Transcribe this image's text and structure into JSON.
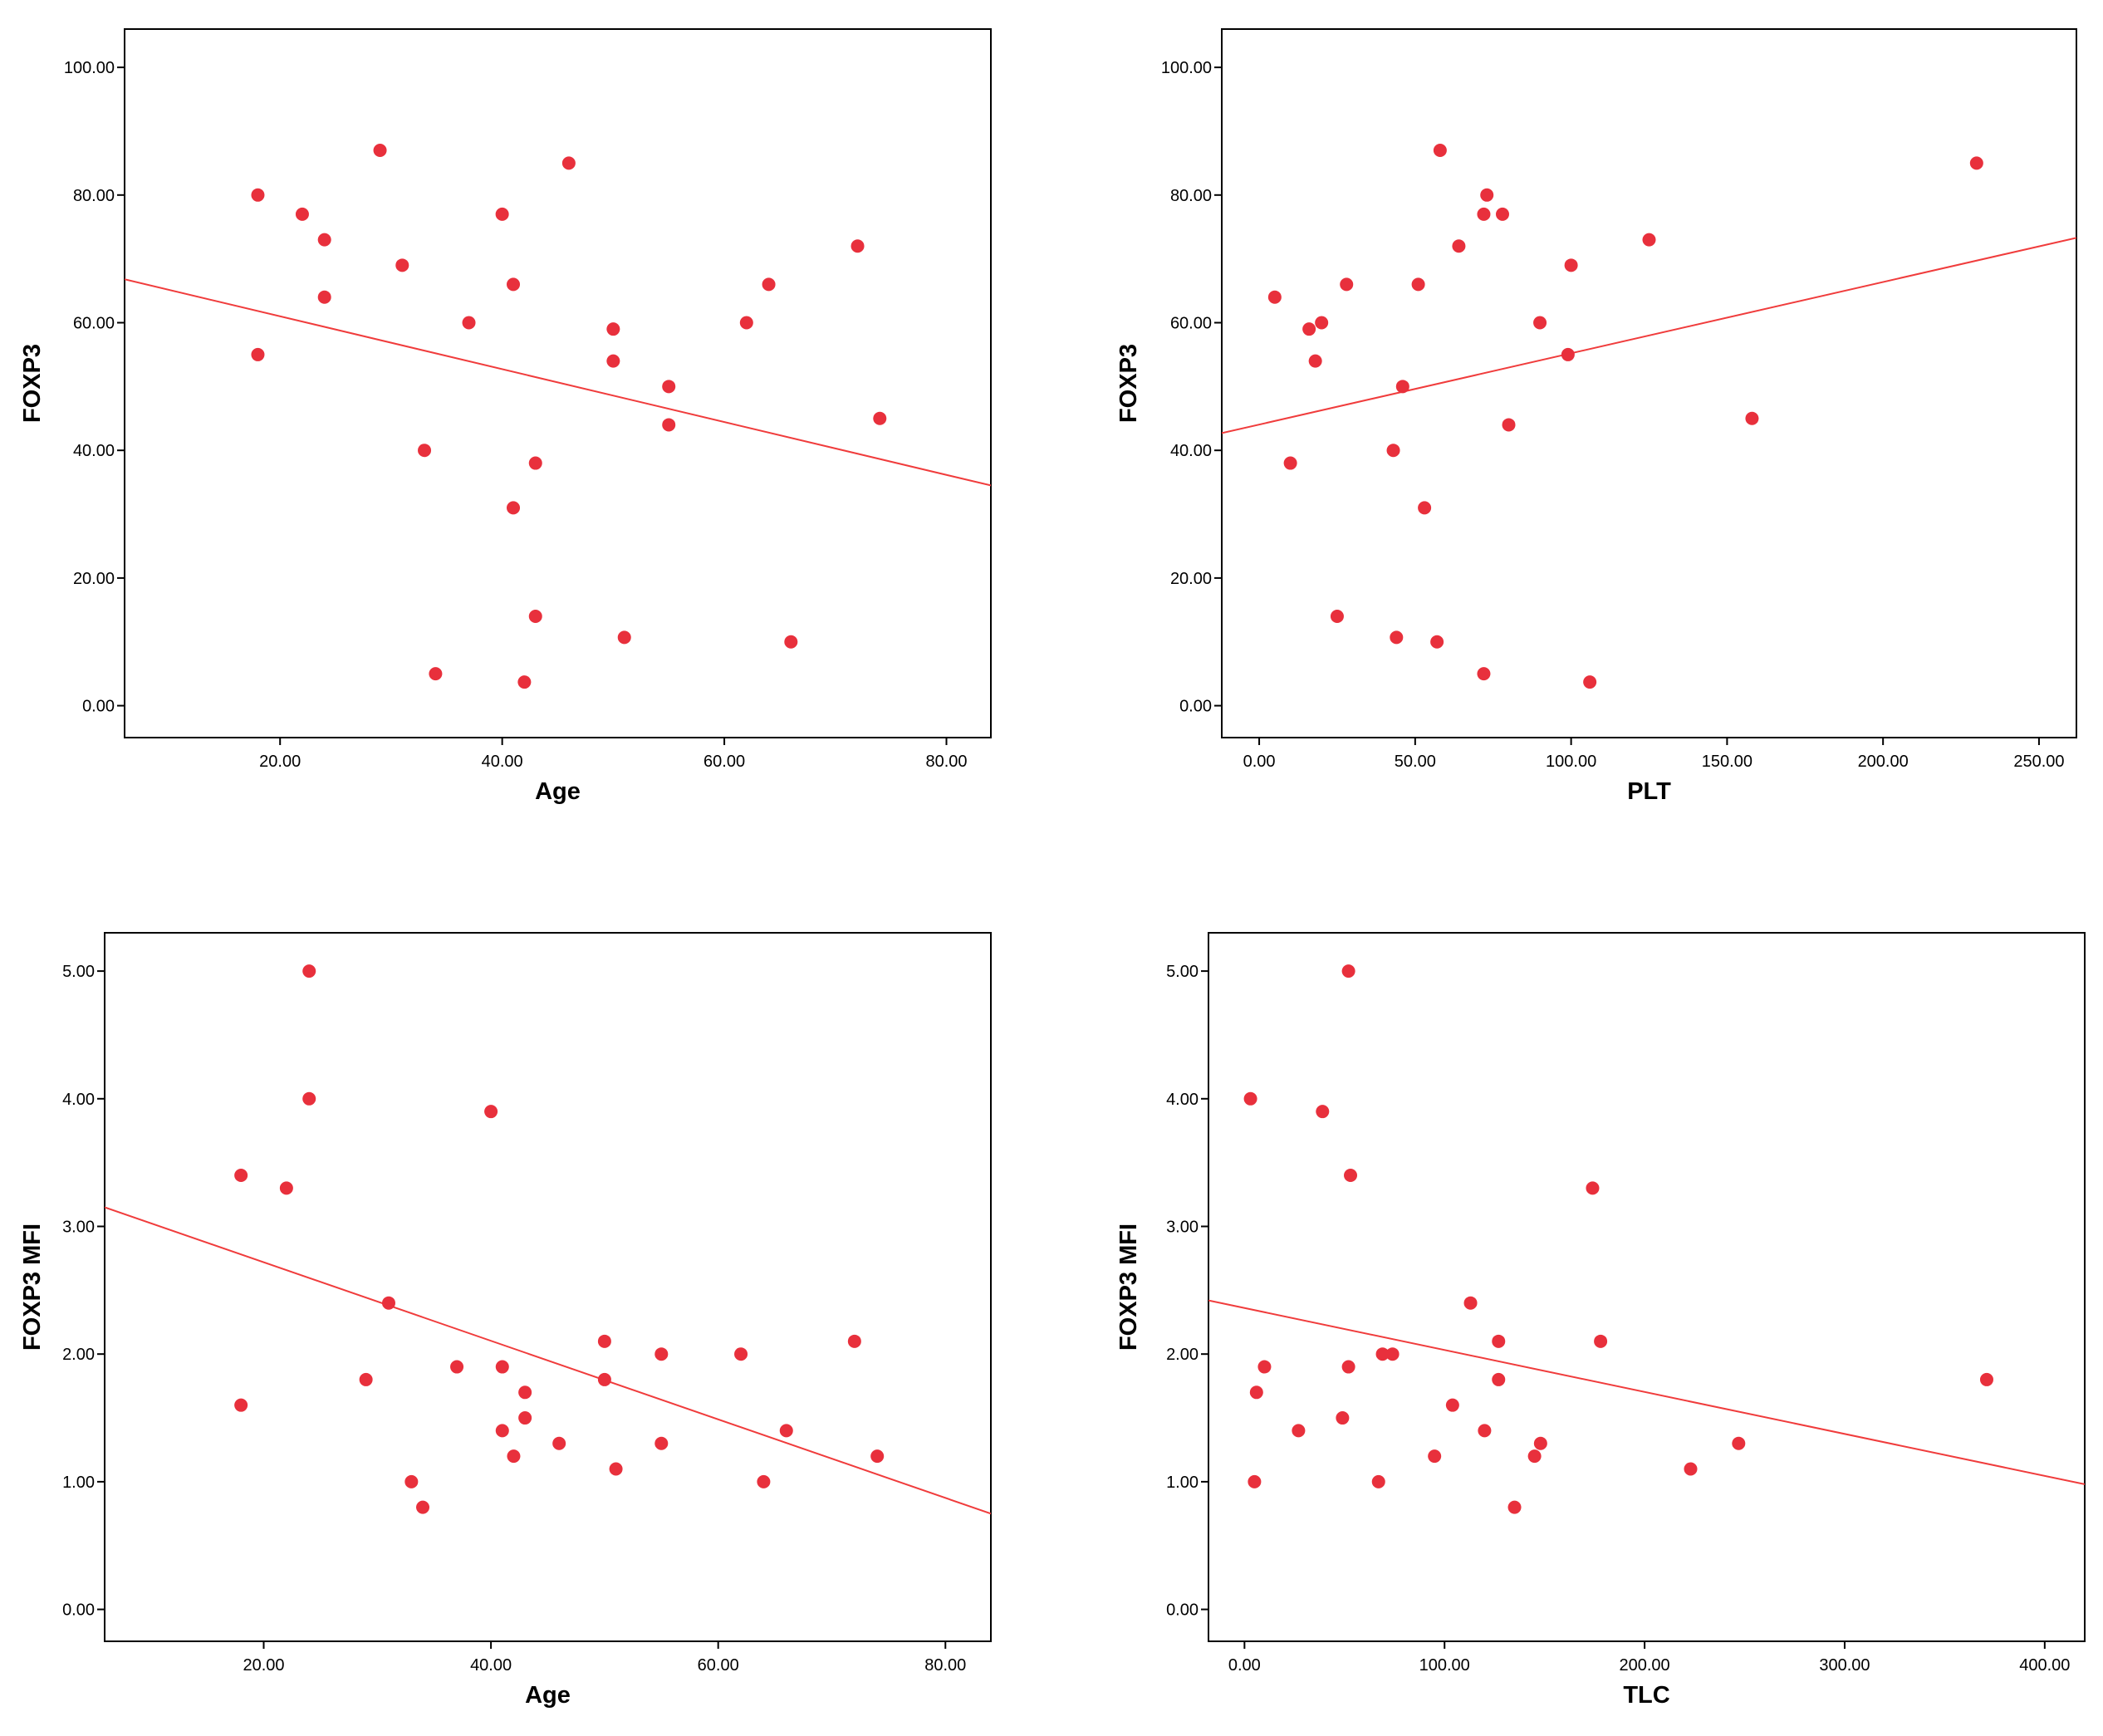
{
  "chart_data": [
    {
      "type": "scatter",
      "xlabel": "Age",
      "ylabel": "FOXP3",
      "xlim": [
        6,
        84
      ],
      "ylim": [
        -5,
        106
      ],
      "xticks": [
        20,
        40,
        60,
        80
      ],
      "yticks": [
        0,
        20,
        40,
        60,
        80,
        100
      ],
      "xtick_labels": [
        "20.00",
        "40.00",
        "60.00",
        "80.00"
      ],
      "ytick_labels": [
        "0.00",
        "20.00",
        "40.00",
        "60.00",
        "80.00",
        "100.00"
      ],
      "grid": false,
      "colors": {
        "points": "#e8303c",
        "line": "#f03c3c",
        "frame": "#000000"
      },
      "points": [
        [
          18,
          80
        ],
        [
          18,
          55
        ],
        [
          22,
          77
        ],
        [
          24,
          73
        ],
        [
          24,
          64
        ],
        [
          29,
          87
        ],
        [
          31,
          69
        ],
        [
          33,
          40
        ],
        [
          34,
          5
        ],
        [
          37,
          60
        ],
        [
          40,
          77
        ],
        [
          41,
          66
        ],
        [
          41,
          31
        ],
        [
          42,
          3.7
        ],
        [
          43,
          38
        ],
        [
          43,
          14
        ],
        [
          46,
          85
        ],
        [
          50,
          59
        ],
        [
          50,
          54
        ],
        [
          51,
          10.7
        ],
        [
          55,
          50
        ],
        [
          55,
          44
        ],
        [
          62,
          60
        ],
        [
          64,
          66
        ],
        [
          66,
          10
        ],
        [
          72,
          72
        ],
        [
          74,
          45
        ]
      ],
      "fit_line": [
        [
          6,
          66.8
        ],
        [
          84,
          34.5
        ]
      ]
    },
    {
      "type": "scatter",
      "xlabel": "PLT",
      "ylabel": "FOXP3",
      "xlim": [
        -12,
        262
      ],
      "ylim": [
        -5,
        106
      ],
      "xticks": [
        0,
        50,
        100,
        150,
        200,
        250
      ],
      "yticks": [
        0,
        20,
        40,
        60,
        80,
        100
      ],
      "xtick_labels": [
        "0.00",
        "50.00",
        "100.00",
        "150.00",
        "200.00",
        "250.00"
      ],
      "ytick_labels": [
        "0.00",
        "20.00",
        "40.00",
        "60.00",
        "80.00",
        "100.00"
      ],
      "grid": false,
      "colors": {
        "points": "#e8303c",
        "line": "#f03c3c",
        "frame": "#000000"
      },
      "points": [
        [
          5,
          64
        ],
        [
          10,
          38
        ],
        [
          16,
          59
        ],
        [
          18,
          54
        ],
        [
          20,
          60
        ],
        [
          25,
          14
        ],
        [
          28,
          66
        ],
        [
          43,
          40
        ],
        [
          44,
          10.7
        ],
        [
          46,
          50
        ],
        [
          51,
          66
        ],
        [
          53,
          31
        ],
        [
          57,
          10
        ],
        [
          58,
          87
        ],
        [
          64,
          72
        ],
        [
          72,
          77
        ],
        [
          72,
          5
        ],
        [
          73,
          80
        ],
        [
          78,
          77
        ],
        [
          80,
          44
        ],
        [
          90,
          60
        ],
        [
          99,
          55
        ],
        [
          100,
          69
        ],
        [
          106,
          3.7
        ],
        [
          125,
          73
        ],
        [
          158,
          45
        ],
        [
          230,
          85
        ]
      ],
      "fit_line": [
        [
          -12,
          42.7
        ],
        [
          262,
          73.3
        ]
      ]
    },
    {
      "type": "scatter",
      "xlabel": "Age",
      "ylabel": "FOXP3 MFI",
      "xlim": [
        6,
        84
      ],
      "ylim": [
        -0.25,
        5.3
      ],
      "xticks": [
        20,
        40,
        60,
        80
      ],
      "yticks": [
        0,
        1,
        2,
        3,
        4,
        5
      ],
      "xtick_labels": [
        "20.00",
        "40.00",
        "60.00",
        "80.00"
      ],
      "ytick_labels": [
        "0.00",
        "1.00",
        "2.00",
        "3.00",
        "4.00",
        "5.00"
      ],
      "grid": false,
      "colors": {
        "points": "#e8303c",
        "line": "#f03c3c",
        "frame": "#000000"
      },
      "points": [
        [
          18,
          3.4
        ],
        [
          18,
          1.6
        ],
        [
          22,
          3.3
        ],
        [
          24,
          5.0
        ],
        [
          24,
          4.0
        ],
        [
          29,
          1.8
        ],
        [
          31,
          2.4
        ],
        [
          33,
          1.0
        ],
        [
          34,
          0.8
        ],
        [
          37,
          1.9
        ],
        [
          40,
          3.9
        ],
        [
          41,
          1.9
        ],
        [
          41,
          1.4
        ],
        [
          42,
          1.2
        ],
        [
          43,
          1.7
        ],
        [
          43,
          1.5
        ],
        [
          46,
          1.3
        ],
        [
          50,
          2.1
        ],
        [
          50,
          1.8
        ],
        [
          51,
          1.1
        ],
        [
          55,
          2.0
        ],
        [
          55,
          1.3
        ],
        [
          62,
          2.0
        ],
        [
          64,
          1.0
        ],
        [
          66,
          1.4
        ],
        [
          72,
          2.1
        ],
        [
          74,
          1.2
        ]
      ],
      "fit_line": [
        [
          6,
          3.15
        ],
        [
          84,
          0.75
        ]
      ]
    },
    {
      "type": "scatter",
      "xlabel": "TLC",
      "ylabel": "FOXP3 MFI",
      "xlim": [
        -18,
        420
      ],
      "ylim": [
        -0.25,
        5.3
      ],
      "xticks": [
        0,
        100,
        200,
        300,
        400
      ],
      "yticks": [
        0,
        1,
        2,
        3,
        4,
        5
      ],
      "xtick_labels": [
        "0.00",
        "100.00",
        "200.00",
        "300.00",
        "400.00"
      ],
      "ytick_labels": [
        "0.00",
        "1.00",
        "2.00",
        "3.00",
        "4.00",
        "5.00"
      ],
      "grid": false,
      "colors": {
        "points": "#e8303c",
        "line": "#f03c3c",
        "frame": "#000000"
      },
      "points": [
        [
          3,
          4.0
        ],
        [
          5,
          1.0
        ],
        [
          6,
          1.7
        ],
        [
          10,
          1.9
        ],
        [
          27,
          1.4
        ],
        [
          39,
          3.9
        ],
        [
          49,
          1.5
        ],
        [
          52,
          5.0
        ],
        [
          52,
          1.9
        ],
        [
          53,
          3.4
        ],
        [
          67,
          1.0
        ],
        [
          69,
          2.0
        ],
        [
          74,
          2.0
        ],
        [
          95,
          1.2
        ],
        [
          104,
          1.6
        ],
        [
          113,
          2.4
        ],
        [
          120,
          1.4
        ],
        [
          127,
          2.1
        ],
        [
          127,
          1.8
        ],
        [
          135,
          0.8
        ],
        [
          145,
          1.2
        ],
        [
          148,
          1.3
        ],
        [
          174,
          3.3
        ],
        [
          178,
          2.1
        ],
        [
          223,
          1.1
        ],
        [
          247,
          1.3
        ],
        [
          371,
          1.8
        ]
      ],
      "fit_line": [
        [
          -18,
          2.42
        ],
        [
          420,
          0.98
        ]
      ]
    }
  ]
}
